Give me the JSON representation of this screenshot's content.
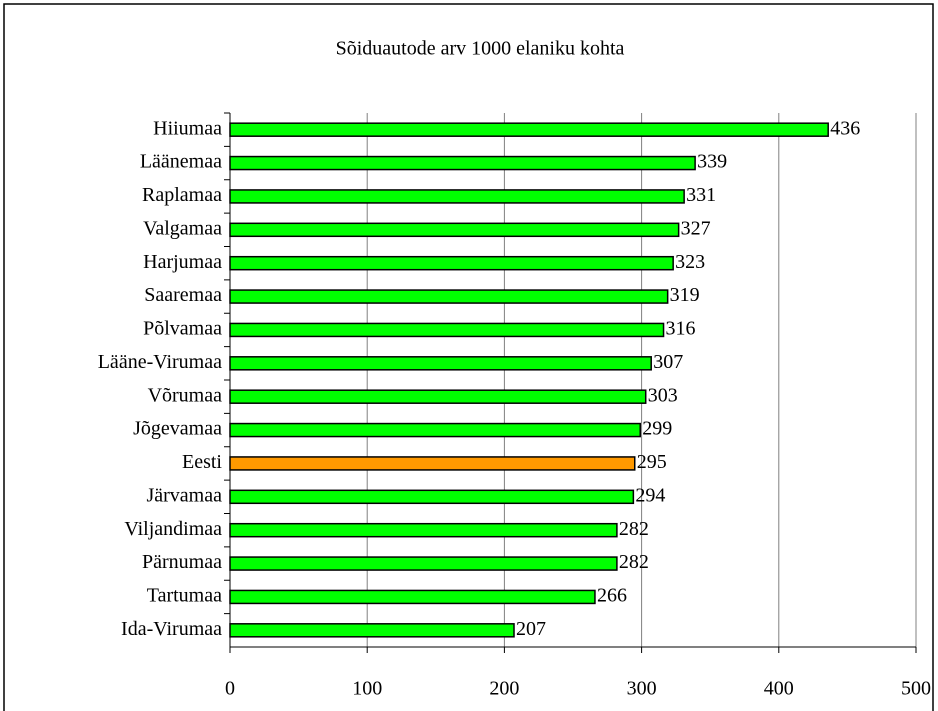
{
  "chart_data": {
    "type": "bar",
    "orientation": "horizontal",
    "title": "Sõiduautode arv 1000 elaniku kohta",
    "categories": [
      "Hiiumaa",
      "Läänemaa",
      "Raplamaa",
      "Valgamaa",
      "Harjumaa",
      "Saaremaa",
      "Põlvamaa",
      "Lääne-Virumaa",
      "Võrumaa",
      "Jõgevamaa",
      "Eesti",
      "Järvamaa",
      "Viljandimaa",
      "Pärnumaa",
      "Tartumaa",
      "Ida-Virumaa"
    ],
    "values": [
      436,
      339,
      331,
      327,
      323,
      319,
      316,
      307,
      303,
      299,
      295,
      294,
      282,
      282,
      266,
      207
    ],
    "colors": [
      "#00ff00",
      "#00ff00",
      "#00ff00",
      "#00ff00",
      "#00ff00",
      "#00ff00",
      "#00ff00",
      "#00ff00",
      "#00ff00",
      "#00ff00",
      "#ff9900",
      "#00ff00",
      "#00ff00",
      "#00ff00",
      "#00ff00",
      "#00ff00"
    ],
    "xlim": [
      0,
      500
    ],
    "xticks": [
      0,
      100,
      200,
      300,
      400,
      500
    ],
    "grid": true
  }
}
